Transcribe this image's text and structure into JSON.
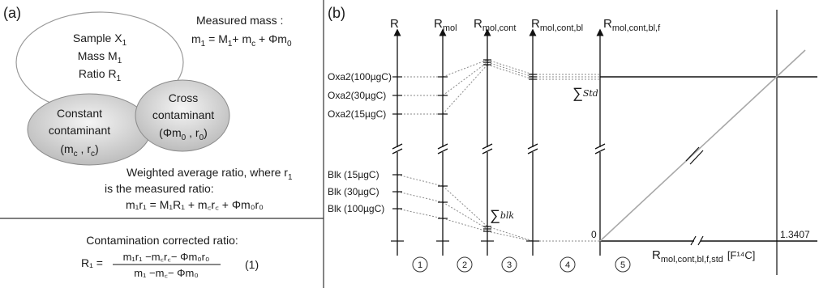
{
  "left_panel": {
    "label": "(a)",
    "sample": {
      "line1": "Sample X",
      "line1_sub": "1",
      "line2": "Mass M",
      "line2_sub": "1",
      "line3": "Ratio R",
      "line3_sub": "1"
    },
    "cross": {
      "line1": "Cross",
      "line2": "contaminant",
      "line3": "(Φm",
      "line3_sub": "0",
      "line3_mid": " , r",
      "line3_sub2": "0",
      "line3_end": ")"
    },
    "constant": {
      "line1": "Constant",
      "line2": "contaminant",
      "line3": "(m",
      "line3_sub": "c",
      "line3_mid": " , r",
      "line3_sub2": "c",
      "line3_end": ")"
    },
    "measured_mass": {
      "label": "Measured mass :",
      "eq_m": "m",
      "eq_m_sub": "1",
      "eq_rest1": " = M",
      "eq_rest1_sub": "1",
      "eq_rest2": "+ m",
      "eq_rest2_sub": "c",
      "eq_rest3": " + Φm",
      "eq_rest3_sub": "0"
    },
    "weighted": {
      "line1": "Weighted average ratio, where r",
      "line1_sub": "1",
      "line2": "is the measured ratio:",
      "eq": "m₁r₁ = M₁R₁ + m꜀r꜀ + Φm₀r₀"
    },
    "corrected": {
      "label": "Contamination corrected ratio:",
      "lhs": "R₁ =",
      "numerator": "m₁r₁ −m꜀r꜀− Φm₀r₀",
      "denominator": "m₁ −m꜀− Φm₀",
      "eq_number": "(1)"
    }
  },
  "right_panel": {
    "label": "(b)",
    "axis_titles": [
      {
        "main": "R",
        "sub": ""
      },
      {
        "main": "R",
        "sub": "mol"
      },
      {
        "main": "R",
        "sub": "mol,cont"
      },
      {
        "main": "R",
        "sub": "mol,cont,bl"
      },
      {
        "main": "R",
        "sub": "mol,cont,bl,f"
      }
    ],
    "std_labels": [
      "Oxa2(100µgC)",
      "Oxa2(30µgC)",
      "Oxa2(15µgC)"
    ],
    "blank_labels": [
      "Blk (15µgC)",
      "Blk (30µgC)",
      "Blk (100µgC)"
    ],
    "sum_std": "Std",
    "sum_blk": "blk",
    "sum_symbol": "∑",
    "zero_label": "0",
    "x_value_label": "1.3407",
    "x_axis_title": {
      "main": "R",
      "sub": "mol,cont,bl,f,std",
      "unit": "[F¹⁴C]"
    },
    "steps": [
      "1",
      "2",
      "3",
      "4",
      "5"
    ]
  }
}
